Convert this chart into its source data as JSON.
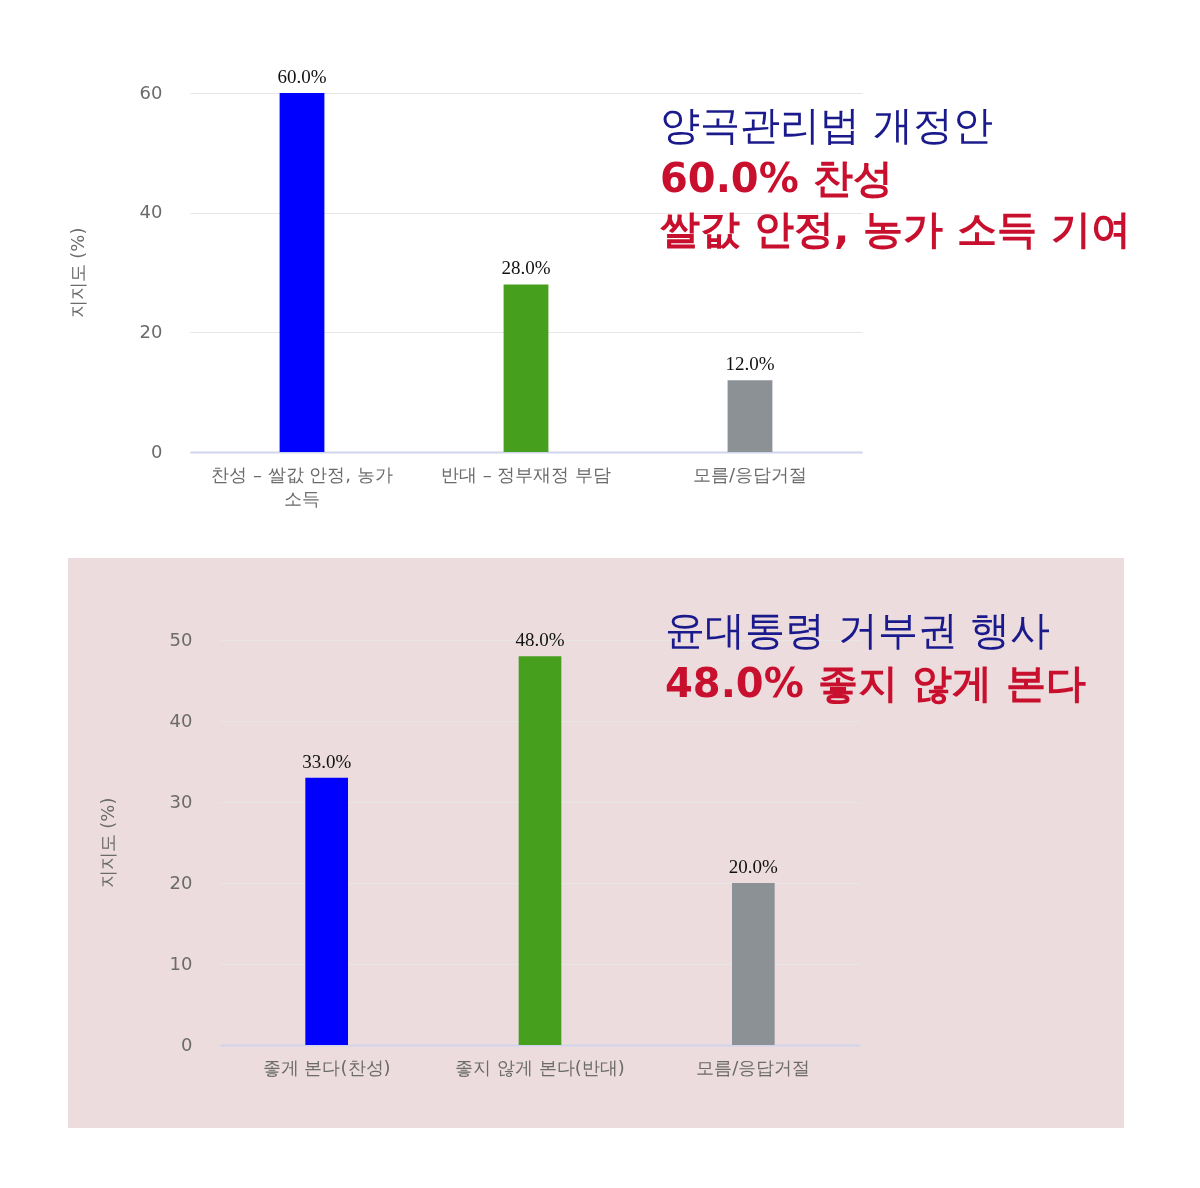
{
  "chart_data": [
    {
      "type": "bar",
      "title": "양곡관리법 개정안",
      "annotations": [
        "60.0% 찬성",
        "쌀값 안정, 농가 소득 기여"
      ],
      "ylabel": "지지도 (%)",
      "categories": [
        "찬성 – 쌀값 안정, 농가 소득",
        "반대 – 정부재정 부담",
        "모름/응답거절"
      ],
      "values": [
        60,
        28,
        12
      ],
      "colors": [
        "#0000ff",
        "#46a01e",
        "#8c9196"
      ],
      "value_labels": [
        "60.0%",
        "28.0%",
        "12.0%"
      ],
      "ylim": [
        0,
        60
      ],
      "yticks": [
        0,
        20,
        40,
        60
      ],
      "grid": "y",
      "legend": false
    },
    {
      "type": "bar",
      "title": "윤대통령 거부권 행사",
      "annotations": [
        "48.0% 좋지 않게 본다"
      ],
      "ylabel": "지지도 (%)",
      "categories": [
        "좋게 본다(찬성)",
        "좋지 않게 본다(반대)",
        "모름/응답거절"
      ],
      "values": [
        33,
        48,
        20
      ],
      "colors": [
        "#0000ff",
        "#46a01e",
        "#8c9196"
      ],
      "value_labels": [
        "33.0%",
        "48.0%",
        "20.0%"
      ],
      "ylim": [
        0,
        50
      ],
      "yticks": [
        0,
        10,
        20,
        30,
        40,
        50
      ],
      "grid": "y",
      "legend": false
    }
  ]
}
